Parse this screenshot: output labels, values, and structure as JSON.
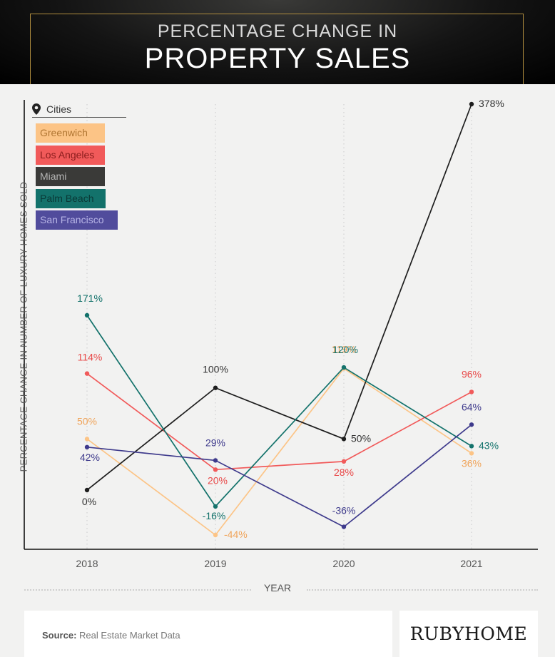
{
  "header": {
    "title_line1": "PERCENTAGE CHANGE IN",
    "title_line2": "PROPERTY SALES"
  },
  "legend": {
    "title": "Cities",
    "icon": "map-pin-icon",
    "items": [
      {
        "label": "Greenwich",
        "bg": "#fcc486",
        "fg": "#b07632"
      },
      {
        "label": "Los Angeles",
        "bg": "#f15a5a",
        "fg": "#8a1c1c"
      },
      {
        "label": "Miami",
        "bg": "#3a3a38",
        "fg": "#b5b5b5"
      },
      {
        "label": "Palm Beach",
        "bg": "#13726b",
        "fg": "#0a3836"
      },
      {
        "label": "San Francisco",
        "bg": "#514c9c",
        "fg": "#b7b4e6"
      }
    ]
  },
  "chart_data": {
    "type": "line",
    "x": [
      "2018",
      "2019",
      "2020",
      "2021"
    ],
    "xlabel": "YEAR",
    "ylabel": "PERCENTAGE CHANGE IN NUMBER OF LUXURY HOMES SOLD",
    "series": [
      {
        "name": "Greenwich",
        "color": "#fcc486",
        "label_color": "#f0a45a",
        "values": [
          50,
          -44,
          119,
          36
        ],
        "labels": [
          "50%",
          "-44%",
          "119%",
          "36%"
        ]
      },
      {
        "name": "Los Angeles",
        "color": "#f15a5a",
        "label_color": "#e84848",
        "values": [
          114,
          20,
          28,
          96
        ],
        "labels": [
          "114%",
          "20%",
          "28%",
          "96%"
        ]
      },
      {
        "name": "Miami",
        "color": "#1e1e1e",
        "label_color": "#333333",
        "values": [
          0,
          100,
          50,
          378
        ],
        "labels": [
          "0%",
          "100%",
          "50%",
          "378%"
        ]
      },
      {
        "name": "Palm Beach",
        "color": "#13726b",
        "label_color": "#13726b",
        "values": [
          171,
          -16,
          120,
          43
        ],
        "labels": [
          "171%",
          "-16%",
          "120%",
          "43%"
        ]
      },
      {
        "name": "San Francisco",
        "color": "#3e3a8c",
        "label_color": "#3e3a8c",
        "values": [
          42,
          29,
          -36,
          64
        ],
        "labels": [
          "42%",
          "29%",
          "-36%",
          "64%"
        ]
      }
    ],
    "ylim": [
      -70,
      378
    ],
    "y_scale": "piecewise-linear",
    "grid": "vertical dotted"
  },
  "footer": {
    "source_label": "Source:",
    "source_text": "Real Estate Market Data",
    "brand": "RUBYHOME"
  }
}
